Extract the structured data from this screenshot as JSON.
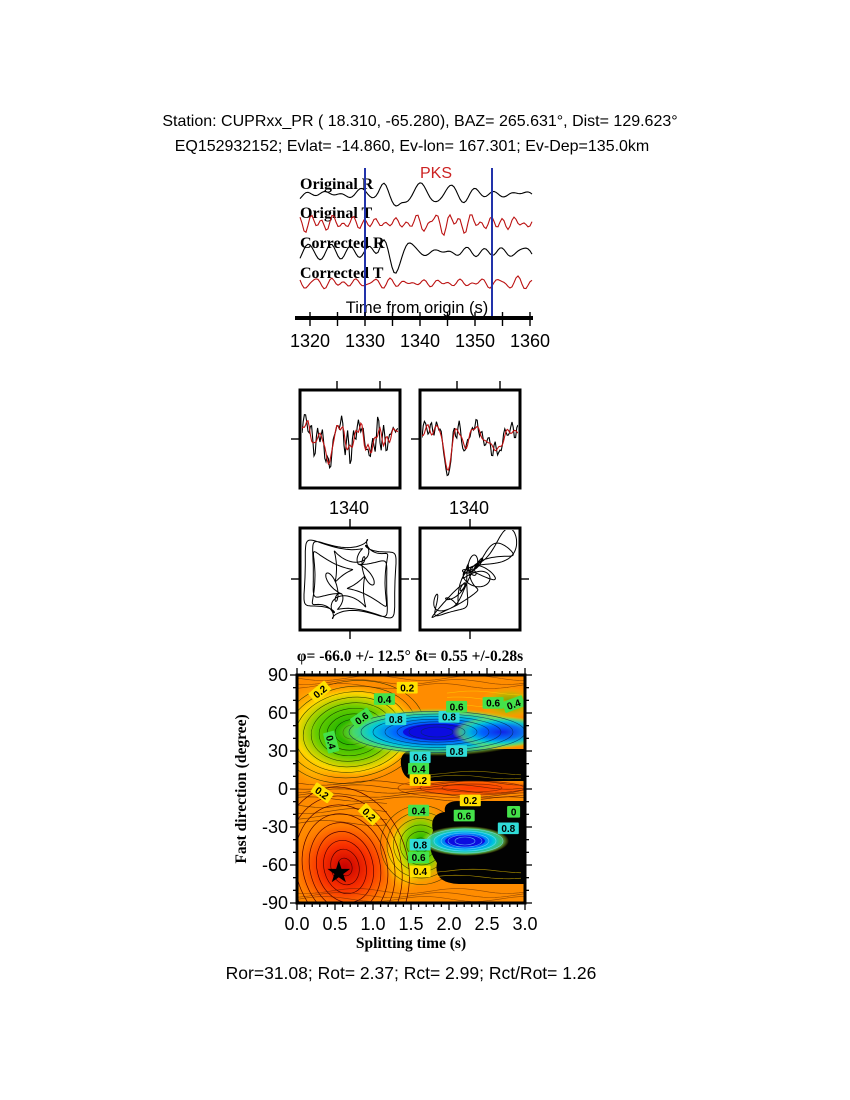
{
  "header": {
    "line1": "Station: CUPRxx_PR (  18.310,  -65.280), BAZ=  265.631°, Dist=  129.623°",
    "line2": "EQ152932152; Evlat= -14.860, Ev-lon= 167.301; Ev-Dep=135.0km"
  },
  "top_waveforms": {
    "phase_label": "PKS",
    "phase_color": "#cc2222",
    "axis_label": "Time from origin (s)",
    "tick_labels": [
      "1320",
      "1330",
      "1340",
      "1350",
      "1360"
    ],
    "window_line_color": "#2233aa",
    "traces": [
      {
        "label": "Original R",
        "color": "#000000"
      },
      {
        "label": "Original T",
        "color": "#bb1111"
      },
      {
        "label": "Corrected R",
        "color": "#000000"
      },
      {
        "label": "Corrected T",
        "color": "#bb1111"
      }
    ]
  },
  "window_panels": {
    "left_tick": "1340",
    "right_tick": "1340"
  },
  "contour": {
    "title": "φ= -66.0 +/- 12.5° δt= 0.55 +/-0.28s",
    "xlabel": "Splitting time (s)",
    "ylabel": "Fast direction (degree)",
    "xtick_labels": [
      "0.0",
      "0.5",
      "1.0",
      "1.5",
      "2.0",
      "2.5",
      "3.0"
    ],
    "ytick_labels": [
      "90",
      "60",
      "30",
      "0",
      "-30",
      "-60",
      "-90"
    ],
    "label_colors": {
      "yellow": "#ffe000",
      "green": "#44e24a",
      "cyan": "#30dcd8"
    },
    "labels": [
      {
        "text": "0.2",
        "t": 0.3,
        "deg": 77,
        "bg": "yellow",
        "rot": -40
      },
      {
        "text": "0.6",
        "t": 0.85,
        "deg": 56,
        "bg": "green",
        "rot": -35
      },
      {
        "text": "0.4",
        "t": 0.45,
        "deg": 37,
        "bg": "green",
        "rot": 75
      },
      {
        "text": "0.2",
        "t": 1.45,
        "deg": 80,
        "bg": "yellow",
        "rot": 0
      },
      {
        "text": "0.4",
        "t": 1.15,
        "deg": 71,
        "bg": "green",
        "rot": 0
      },
      {
        "text": "0.8",
        "t": 1.3,
        "deg": 55,
        "bg": "cyan",
        "rot": 0
      },
      {
        "text": "0.8",
        "t": 2.0,
        "deg": 57,
        "bg": "cyan",
        "rot": 0
      },
      {
        "text": "0.6",
        "t": 2.1,
        "deg": 65,
        "bg": "green",
        "rot": 0
      },
      {
        "text": "0.6",
        "t": 2.58,
        "deg": 68,
        "bg": "green",
        "rot": 0
      },
      {
        "text": "0.4",
        "t": 2.85,
        "deg": 67,
        "bg": "green",
        "rot": -20
      },
      {
        "text": "0.8",
        "t": 2.1,
        "deg": 30,
        "bg": "cyan",
        "rot": 0
      },
      {
        "text": "0.6",
        "t": 1.62,
        "deg": 25,
        "bg": "cyan",
        "rot": 0
      },
      {
        "text": "0.4",
        "t": 1.6,
        "deg": 16,
        "bg": "green",
        "rot": 0
      },
      {
        "text": "0.2",
        "t": 1.62,
        "deg": 7,
        "bg": "yellow",
        "rot": 0
      },
      {
        "text": "0.2",
        "t": 0.33,
        "deg": -3,
        "bg": "yellow",
        "rot": 35
      },
      {
        "text": "0.2",
        "t": 0.95,
        "deg": -20,
        "bg": "yellow",
        "rot": 45
      },
      {
        "text": "0.2",
        "t": 2.28,
        "deg": -9,
        "bg": "yellow",
        "rot": 0
      },
      {
        "text": "0.4",
        "t": 1.6,
        "deg": -17,
        "bg": "green",
        "rot": 0
      },
      {
        "text": "0.6",
        "t": 2.2,
        "deg": -21,
        "bg": "green",
        "rot": 0
      },
      {
        "text": "0",
        "t": 2.85,
        "deg": -18,
        "bg": "green",
        "rot": 0
      },
      {
        "text": "0.8",
        "t": 2.78,
        "deg": -31,
        "bg": "cyan",
        "rot": 0
      },
      {
        "text": "0.8",
        "t": 1.62,
        "deg": -44,
        "bg": "cyan",
        "rot": 0
      },
      {
        "text": "0.6",
        "t": 1.6,
        "deg": -54,
        "bg": "green",
        "rot": 0
      },
      {
        "text": "0.4",
        "t": 1.62,
        "deg": -65,
        "bg": "yellow",
        "rot": 0
      }
    ],
    "star": {
      "t": 0.55,
      "deg": -66
    }
  },
  "footer": {
    "stats": "Ror=31.08; Rot= 2.37; Rct= 2.99; Rct/Rot= 1.26"
  },
  "chart_data": {
    "type": "heatmap",
    "title": "φ= -66.0 +/- 12.5° δt= 0.55 +/-0.28s",
    "xlabel": "Splitting time (s)",
    "ylabel": "Fast direction (degree)",
    "xlim": [
      0,
      3
    ],
    "ylim": [
      -90,
      90
    ],
    "xticks": [
      0.0,
      0.5,
      1.0,
      1.5,
      2.0,
      2.5,
      3.0
    ],
    "yticks": [
      90,
      60,
      30,
      0,
      -30,
      -60,
      -90
    ],
    "contour_levels": [
      0.2,
      0.4,
      0.6,
      0.8
    ],
    "best_split": {
      "fast_direction_deg": -66.0,
      "fast_direction_err_deg": 12.5,
      "split_time_s": 0.55,
      "split_time_err_s": 0.28
    },
    "minimum_marker": {
      "t": 0.55,
      "deg": -66,
      "marker": "star"
    },
    "waveform_panel": {
      "phase": "PKS",
      "xlabel": "Time from origin (s)",
      "xticks": [
        1320,
        1330,
        1340,
        1350,
        1360
      ],
      "analysis_window_s": [
        1330,
        1352.5
      ],
      "traces": [
        "Original R",
        "Original T",
        "Corrected R",
        "Corrected T"
      ]
    },
    "window_panels_xtick": 1340,
    "stats": {
      "Ror": 31.08,
      "Rot": 2.37,
      "Rct": 2.99,
      "Rct/Rot": 1.26
    }
  }
}
